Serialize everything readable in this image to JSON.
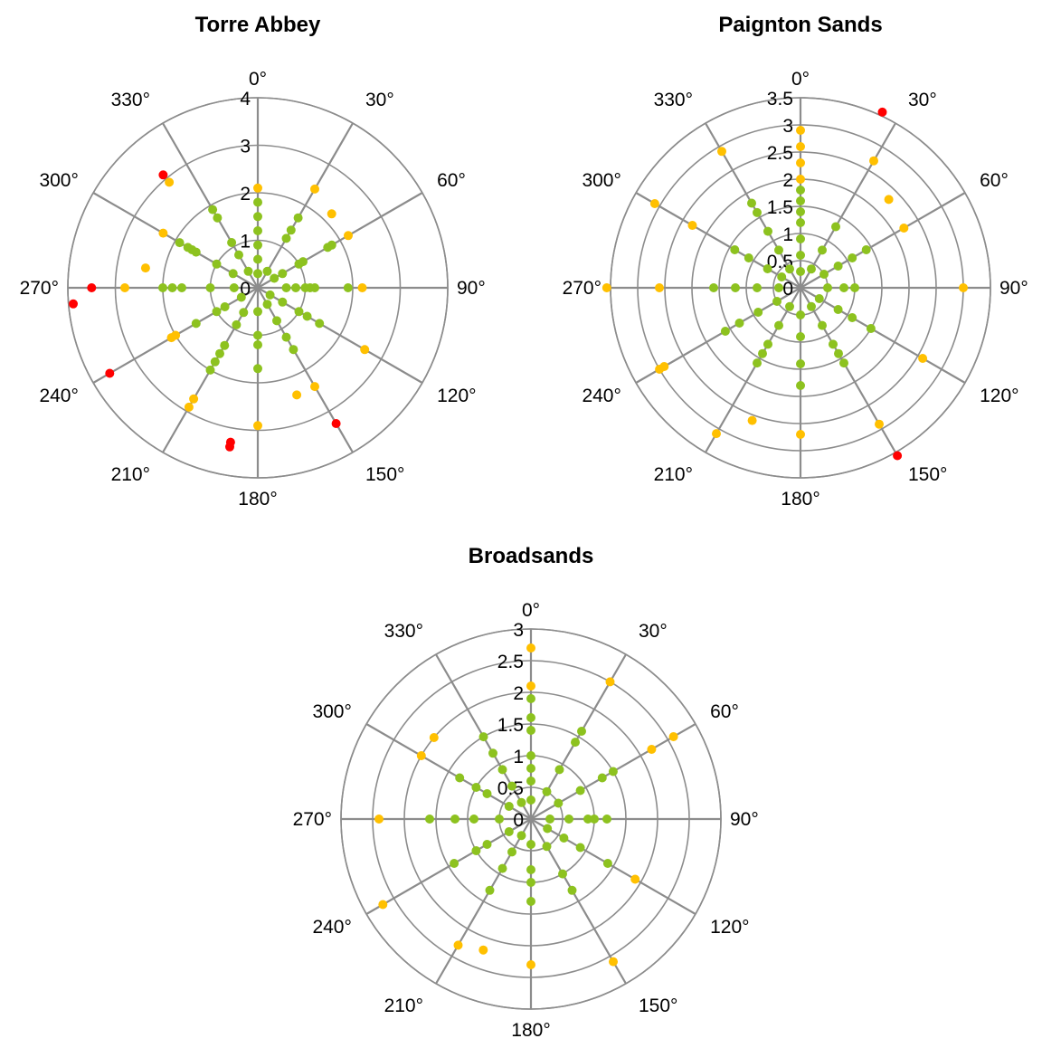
{
  "colors": {
    "green": "#8dc21f",
    "orange": "#ffc000",
    "red": "#ff0000",
    "grid": "#8c8c8c"
  },
  "chart_data": [
    {
      "type": "scatter",
      "coordinate_system": "polar",
      "title": "Torre Abbey",
      "angle_unit": "degrees",
      "angle_ticks": [
        "0°",
        "30°",
        "60°",
        "90°",
        "120°",
        "150°",
        "180°",
        "210°",
        "240°",
        "270°",
        "300°",
        "330°"
      ],
      "radial_ticks": [
        "0",
        "1",
        "2",
        "3",
        "4"
      ],
      "rlim": [
        0,
        4
      ],
      "series": [
        {
          "color": "green",
          "points": [
            [
              0,
              0.3
            ],
            [
              0,
              0.6
            ],
            [
              0,
              0.9
            ],
            [
              0,
              1.2
            ],
            [
              0,
              1.5
            ],
            [
              0,
              1.8
            ],
            [
              30,
              0.4
            ],
            [
              30,
              1.2
            ],
            [
              30,
              1.4
            ],
            [
              30,
              1.7
            ],
            [
              60,
              0.4
            ],
            [
              60,
              0.6
            ],
            [
              60,
              1.0
            ],
            [
              60,
              1.1
            ],
            [
              60,
              1.7
            ],
            [
              60,
              1.8
            ],
            [
              90,
              0.6
            ],
            [
              90,
              0.8
            ],
            [
              90,
              1.0
            ],
            [
              90,
              1.1
            ],
            [
              90,
              1.2
            ],
            [
              90,
              1.9
            ],
            [
              120,
              0.3
            ],
            [
              120,
              0.6
            ],
            [
              120,
              1.0
            ],
            [
              120,
              1.2
            ],
            [
              120,
              1.5
            ],
            [
              150,
              0.4
            ],
            [
              150,
              0.8
            ],
            [
              150,
              1.2
            ],
            [
              150,
              1.5
            ],
            [
              180,
              0.5
            ],
            [
              180,
              1.0
            ],
            [
              180,
              1.2
            ],
            [
              180,
              1.7
            ],
            [
              210,
              0.6
            ],
            [
              210,
              0.9
            ],
            [
              210,
              1.4
            ],
            [
              210,
              1.6
            ],
            [
              210,
              1.8
            ],
            [
              210,
              2.0
            ],
            [
              240,
              0.4
            ],
            [
              240,
              0.8
            ],
            [
              240,
              1.0
            ],
            [
              240,
              1.5
            ],
            [
              270,
              0.5
            ],
            [
              270,
              1.0
            ],
            [
              270,
              1.6
            ],
            [
              270,
              1.8
            ],
            [
              270,
              2.0
            ],
            [
              300,
              0.6
            ],
            [
              300,
              1.0
            ],
            [
              300,
              1.5
            ],
            [
              300,
              1.6
            ],
            [
              300,
              1.7
            ],
            [
              300,
              1.9
            ],
            [
              330,
              0.4
            ],
            [
              330,
              0.8
            ],
            [
              330,
              1.1
            ],
            [
              330,
              1.7
            ],
            [
              330,
              1.9
            ]
          ]
        },
        {
          "color": "orange",
          "points": [
            [
              0,
              2.1
            ],
            [
              30,
              2.4
            ],
            [
              45,
              2.2
            ],
            [
              60,
              2.2
            ],
            [
              90,
              2.2
            ],
            [
              120,
              2.6
            ],
            [
              150,
              2.4
            ],
            [
              160,
              2.4
            ],
            [
              180,
              2.9
            ],
            [
              210,
              2.7
            ],
            [
              210,
              2.9
            ],
            [
              240,
              2.0
            ],
            [
              240,
              2.1
            ],
            [
              270,
              2.8
            ],
            [
              280,
              2.4
            ],
            [
              300,
              2.3
            ],
            [
              320,
              2.9
            ]
          ]
        },
        {
          "color": "red",
          "points": [
            [
              150,
              3.3
            ],
            [
              190,
              3.3
            ],
            [
              190,
              3.4
            ],
            [
              240,
              3.6
            ],
            [
              270,
              3.5
            ],
            [
              265,
              3.9
            ],
            [
              320,
              3.1
            ]
          ]
        }
      ]
    },
    {
      "type": "scatter",
      "coordinate_system": "polar",
      "title": "Paignton Sands",
      "angle_unit": "degrees",
      "angle_ticks": [
        "0°",
        "30°",
        "60°",
        "90°",
        "120°",
        "150°",
        "180°",
        "210°",
        "240°",
        "270°",
        "300°",
        "330°"
      ],
      "radial_ticks": [
        "0",
        "0.5",
        "1",
        "1.5",
        "2",
        "2.5",
        "3",
        "3.5"
      ],
      "rlim": [
        0,
        3.5
      ],
      "series": [
        {
          "color": "green",
          "points": [
            [
              0,
              0.3
            ],
            [
              0,
              0.6
            ],
            [
              0,
              0.9
            ],
            [
              0,
              1.2
            ],
            [
              0,
              1.4
            ],
            [
              0,
              1.6
            ],
            [
              0,
              1.8
            ],
            [
              30,
              0.4
            ],
            [
              30,
              0.8
            ],
            [
              30,
              1.3
            ],
            [
              60,
              0.5
            ],
            [
              60,
              0.8
            ],
            [
              60,
              1.1
            ],
            [
              60,
              1.4
            ],
            [
              90,
              0.5
            ],
            [
              90,
              0.8
            ],
            [
              90,
              1.0
            ],
            [
              120,
              0.4
            ],
            [
              120,
              0.8
            ],
            [
              120,
              1.1
            ],
            [
              120,
              1.5
            ],
            [
              150,
              0.4
            ],
            [
              150,
              0.8
            ],
            [
              150,
              1.2
            ],
            [
              150,
              1.4
            ],
            [
              150,
              1.6
            ],
            [
              180,
              0.5
            ],
            [
              180,
              0.9
            ],
            [
              180,
              1.4
            ],
            [
              180,
              1.8
            ],
            [
              210,
              0.4
            ],
            [
              210,
              0.8
            ],
            [
              210,
              1.2
            ],
            [
              210,
              1.4
            ],
            [
              210,
              1.6
            ],
            [
              240,
              0.5
            ],
            [
              240,
              0.9
            ],
            [
              240,
              1.3
            ],
            [
              240,
              1.6
            ],
            [
              270,
              0.4
            ],
            [
              270,
              0.8
            ],
            [
              270,
              1.2
            ],
            [
              270,
              1.6
            ],
            [
              300,
              0.4
            ],
            [
              300,
              0.7
            ],
            [
              300,
              1.1
            ],
            [
              300,
              1.4
            ],
            [
              330,
              0.4
            ],
            [
              330,
              0.8
            ],
            [
              330,
              1.2
            ],
            [
              330,
              1.6
            ],
            [
              330,
              1.8
            ]
          ]
        },
        {
          "color": "orange",
          "points": [
            [
              0,
              2.0
            ],
            [
              0,
              2.3
            ],
            [
              0,
              2.6
            ],
            [
              0,
              2.9
            ],
            [
              30,
              2.7
            ],
            [
              45,
              2.3
            ],
            [
              60,
              2.2
            ],
            [
              90,
              3.0
            ],
            [
              120,
              2.6
            ],
            [
              150,
              2.9
            ],
            [
              180,
              2.7
            ],
            [
              200,
              2.6
            ],
            [
              210,
              3.1
            ],
            [
              240,
              2.9
            ],
            [
              240,
              3.0
            ],
            [
              270,
              2.6
            ],
            [
              270,
              3.6
            ],
            [
              300,
              2.3
            ],
            [
              300,
              3.1
            ],
            [
              330,
              2.9
            ]
          ]
        },
        {
          "color": "red",
          "points": [
            [
              25,
              4.1
            ],
            [
              150,
              3.7
            ]
          ]
        }
      ]
    },
    {
      "type": "scatter",
      "coordinate_system": "polar",
      "title": "Broadsands",
      "angle_unit": "degrees",
      "angle_ticks": [
        "0°",
        "30°",
        "60°",
        "90°",
        "120°",
        "150°",
        "180°",
        "210°",
        "240°",
        "270°",
        "300°",
        "330°"
      ],
      "radial_ticks": [
        "0",
        "0.5",
        "1",
        "1.5",
        "2",
        "2.5",
        "3"
      ],
      "rlim": [
        0,
        3
      ],
      "series": [
        {
          "color": "green",
          "points": [
            [
              0,
              0.3
            ],
            [
              0,
              0.6
            ],
            [
              0,
              0.8
            ],
            [
              0,
              1.0
            ],
            [
              0,
              1.4
            ],
            [
              0,
              1.6
            ],
            [
              0,
              1.9
            ],
            [
              30,
              0.5
            ],
            [
              30,
              0.9
            ],
            [
              30,
              1.4
            ],
            [
              30,
              1.6
            ],
            [
              60,
              0.5
            ],
            [
              60,
              0.9
            ],
            [
              60,
              1.3
            ],
            [
              60,
              1.5
            ],
            [
              90,
              0.3
            ],
            [
              90,
              0.6
            ],
            [
              90,
              0.9
            ],
            [
              90,
              1.0
            ],
            [
              90,
              1.2
            ],
            [
              120,
              0.3
            ],
            [
              120,
              0.6
            ],
            [
              120,
              0.9
            ],
            [
              120,
              1.4
            ],
            [
              150,
              0.5
            ],
            [
              150,
              1.0
            ],
            [
              150,
              1.3
            ],
            [
              180,
              0.4
            ],
            [
              180,
              0.8
            ],
            [
              180,
              1.0
            ],
            [
              180,
              1.3
            ],
            [
              210,
              0.3
            ],
            [
              210,
              0.6
            ],
            [
              210,
              0.9
            ],
            [
              210,
              1.3
            ],
            [
              240,
              0.4
            ],
            [
              240,
              0.8
            ],
            [
              240,
              1.0
            ],
            [
              240,
              1.4
            ],
            [
              270,
              0.5
            ],
            [
              270,
              0.9
            ],
            [
              270,
              1.2
            ],
            [
              270,
              1.6
            ],
            [
              300,
              0.4
            ],
            [
              300,
              0.8
            ],
            [
              300,
              1.0
            ],
            [
              300,
              1.3
            ],
            [
              330,
              0.3
            ],
            [
              330,
              0.6
            ],
            [
              330,
              0.9
            ],
            [
              330,
              1.2
            ],
            [
              330,
              1.5
            ]
          ]
        },
        {
          "color": "orange",
          "points": [
            [
              0,
              2.1
            ],
            [
              0,
              2.7
            ],
            [
              30,
              2.5
            ],
            [
              60,
              2.2
            ],
            [
              60,
              2.6
            ],
            [
              120,
              1.9
            ],
            [
              150,
              2.6
            ],
            [
              180,
              2.3
            ],
            [
              200,
              2.2
            ],
            [
              210,
              2.3
            ],
            [
              240,
              2.7
            ],
            [
              270,
              2.4
            ],
            [
              300,
              2.0
            ],
            [
              310,
              2.0
            ]
          ]
        },
        {
          "color": "red",
          "points": []
        }
      ]
    }
  ]
}
